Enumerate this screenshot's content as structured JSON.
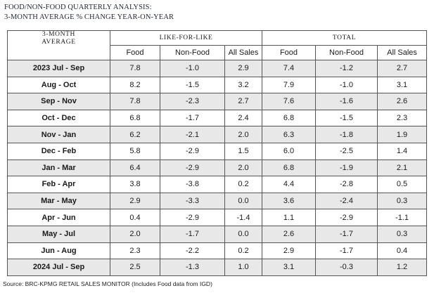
{
  "title": {
    "line1": "FOOD/NON-FOOD QUARTERLY ANALYSIS:",
    "line2": "3-MONTH AVERAGE % CHANGE YEAR-ON-YEAR"
  },
  "table": {
    "corner_label_line1": "3-MONTH",
    "corner_label_line2": "AVERAGE",
    "groups": [
      "LIKE-FOR-LIKE",
      "TOTAL"
    ],
    "columns": [
      "Food",
      "Non-Food",
      "All Sales",
      "Food",
      "Non-Food",
      "All Sales"
    ],
    "rows": [
      {
        "period": "2023 Jul - Sep",
        "values": [
          "7.8",
          "-1.0",
          "2.9",
          "7.4",
          "-1.2",
          "2.7"
        ]
      },
      {
        "period": "Aug - Oct",
        "values": [
          "8.2",
          "-1.5",
          "3.2",
          "7.9",
          "-1.0",
          "3.1"
        ]
      },
      {
        "period": "Sep - Nov",
        "values": [
          "7.8",
          "-2.3",
          "2.7",
          "7.6",
          "-1.6",
          "2.6"
        ]
      },
      {
        "period": "Oct - Dec",
        "values": [
          "6.8",
          "-1.7",
          "2.4",
          "6.8",
          "-1.5",
          "2.3"
        ]
      },
      {
        "period": "Nov - Jan",
        "values": [
          "6.2",
          "-2.1",
          "2.0",
          "6.3",
          "-1.8",
          "1.9"
        ]
      },
      {
        "period": "Dec - Feb",
        "values": [
          "5.8",
          "-2.9",
          "1.5",
          "6.0",
          "-2.5",
          "1.4"
        ]
      },
      {
        "period": "Jan - Mar",
        "values": [
          "6.4",
          "-2.9",
          "2.0",
          "6.8",
          "-1.9",
          "2.1"
        ]
      },
      {
        "period": "Feb - Apr",
        "values": [
          "3.8",
          "-3.8",
          "0.2",
          "4.4",
          "-2.8",
          "0.5"
        ]
      },
      {
        "period": "Mar - May",
        "values": [
          "2.9",
          "-3.3",
          "0.0",
          "3.6",
          "-2.4",
          "0.3"
        ]
      },
      {
        "period": "Apr - Jun",
        "values": [
          "0.4",
          "-2.9",
          "-1.4",
          "1.1",
          "-2.9",
          "-1.1"
        ]
      },
      {
        "period": "May - Jul",
        "values": [
          "2.0",
          "-1.7",
          "0.0",
          "2.6",
          "-1.7",
          "0.3"
        ]
      },
      {
        "period": "Jun - Aug",
        "values": [
          "2.3",
          "-2.2",
          "0.2",
          "2.9",
          "-1.7",
          "0.4"
        ]
      },
      {
        "period": "2024 Jul - Sep",
        "values": [
          "2.5",
          "-1.3",
          "1.0",
          "3.1",
          "-0.3",
          "1.2"
        ]
      }
    ]
  },
  "source": "Source: BRC-KPMG RETAIL SALES MONITOR (Includes Food data from IGD)"
}
